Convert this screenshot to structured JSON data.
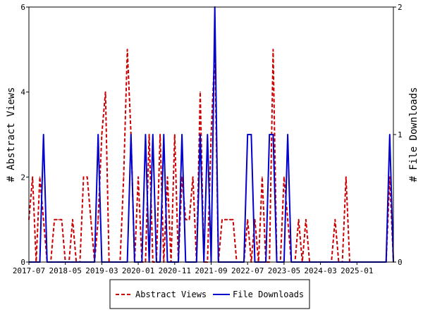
{
  "chart_data": {
    "type": "line",
    "x_tick_labels": [
      "2017-07",
      "2018-05",
      "2019-03",
      "2020-01",
      "2020-11",
      "2021-09",
      "2022-07",
      "2023-05",
      "2024-03",
      "2025-01"
    ],
    "x_start": "2017-07",
    "x_end": "2025-11",
    "ylabel_left": "# Abstract Views",
    "ylabel_right": "# File Downloads",
    "ylim_left": [
      0,
      6
    ],
    "ylim_right": [
      0,
      2
    ],
    "yticks_left": [
      "0",
      "2",
      "4",
      "6"
    ],
    "yticks_right": [
      "0",
      "1",
      "2"
    ],
    "legend_position": "bottom-center",
    "series": [
      {
        "name": "Abstract Views",
        "axis": "left",
        "color": "#cc0000",
        "dash": "dashed",
        "points": [
          [
            "2017-07",
            1
          ],
          [
            "2017-08",
            2
          ],
          [
            "2017-09",
            0
          ],
          [
            "2017-10",
            2
          ],
          [
            "2017-11",
            1
          ],
          [
            "2017-12",
            0
          ],
          [
            "2018-01",
            0
          ],
          [
            "2018-02",
            1
          ],
          [
            "2018-03",
            1
          ],
          [
            "2018-04",
            1
          ],
          [
            "2018-05",
            0
          ],
          [
            "2018-06",
            0
          ],
          [
            "2018-07",
            1
          ],
          [
            "2018-08",
            0
          ],
          [
            "2018-09",
            0
          ],
          [
            "2018-10",
            2
          ],
          [
            "2018-11",
            2
          ],
          [
            "2018-12",
            1
          ],
          [
            "2019-01",
            0
          ],
          [
            "2019-02",
            1
          ],
          [
            "2019-03",
            3
          ],
          [
            "2019-04",
            4
          ],
          [
            "2019-05",
            0
          ],
          [
            "2019-06",
            0
          ],
          [
            "2019-07",
            0
          ],
          [
            "2019-08",
            0
          ],
          [
            "2019-09",
            2
          ],
          [
            "2019-10",
            5
          ],
          [
            "2019-11",
            3
          ],
          [
            "2019-12",
            0
          ],
          [
            "2020-01",
            2
          ],
          [
            "2020-02",
            0
          ],
          [
            "2020-03",
            0
          ],
          [
            "2020-04",
            3
          ],
          [
            "2020-05",
            0
          ],
          [
            "2020-06",
            0
          ],
          [
            "2020-07",
            3
          ],
          [
            "2020-08",
            0
          ],
          [
            "2020-09",
            2
          ],
          [
            "2020-10",
            0
          ],
          [
            "2020-11",
            3
          ],
          [
            "2020-12",
            0
          ],
          [
            "2021-01",
            2
          ],
          [
            "2021-02",
            1
          ],
          [
            "2021-03",
            1
          ],
          [
            "2021-04",
            2
          ],
          [
            "2021-05",
            0
          ],
          [
            "2021-06",
            4
          ],
          [
            "2021-07",
            0
          ],
          [
            "2021-08",
            0
          ],
          [
            "2021-09",
            3
          ],
          [
            "2021-10",
            5
          ],
          [
            "2021-11",
            0
          ],
          [
            "2021-12",
            1
          ],
          [
            "2022-01",
            1
          ],
          [
            "2022-02",
            1
          ],
          [
            "2022-03",
            1
          ],
          [
            "2022-04",
            0
          ],
          [
            "2022-05",
            0
          ],
          [
            "2022-06",
            0
          ],
          [
            "2022-07",
            1
          ],
          [
            "2022-08",
            0
          ],
          [
            "2022-09",
            1
          ],
          [
            "2022-10",
            0
          ],
          [
            "2022-11",
            2
          ],
          [
            "2022-12",
            0
          ],
          [
            "2023-01",
            0
          ],
          [
            "2023-02",
            5
          ],
          [
            "2023-03",
            0
          ],
          [
            "2023-04",
            0
          ],
          [
            "2023-05",
            2
          ],
          [
            "2023-06",
            1
          ],
          [
            "2023-07",
            0
          ],
          [
            "2023-08",
            0
          ],
          [
            "2023-09",
            1
          ],
          [
            "2023-10",
            0
          ],
          [
            "2023-11",
            1
          ],
          [
            "2023-12",
            0
          ],
          [
            "2024-01",
            0
          ],
          [
            "2024-02",
            0
          ],
          [
            "2024-03",
            0
          ],
          [
            "2024-04",
            0
          ],
          [
            "2024-05",
            0
          ],
          [
            "2024-06",
            0
          ],
          [
            "2024-07",
            1
          ],
          [
            "2024-08",
            0
          ],
          [
            "2024-09",
            0
          ],
          [
            "2024-10",
            2
          ],
          [
            "2024-11",
            0
          ],
          [
            "2024-12",
            0
          ],
          [
            "2025-01",
            0
          ],
          [
            "2025-02",
            0
          ],
          [
            "2025-03",
            0
          ],
          [
            "2025-04",
            0
          ],
          [
            "2025-05",
            0
          ],
          [
            "2025-06",
            0
          ],
          [
            "2025-07",
            0
          ],
          [
            "2025-08",
            0
          ],
          [
            "2025-09",
            0
          ],
          [
            "2025-10",
            2
          ],
          [
            "2025-11",
            0
          ]
        ]
      },
      {
        "name": "File Downloads",
        "axis": "right",
        "color": "#0000cc",
        "dash": "solid",
        "points": [
          [
            "2017-07",
            0
          ],
          [
            "2017-08",
            0
          ],
          [
            "2017-09",
            0
          ],
          [
            "2017-10",
            0
          ],
          [
            "2017-11",
            1
          ],
          [
            "2017-12",
            0
          ],
          [
            "2018-01",
            0
          ],
          [
            "2018-02",
            0
          ],
          [
            "2018-03",
            0
          ],
          [
            "2018-04",
            0
          ],
          [
            "2018-05",
            0
          ],
          [
            "2018-06",
            0
          ],
          [
            "2018-07",
            0
          ],
          [
            "2018-08",
            0
          ],
          [
            "2018-09",
            0
          ],
          [
            "2018-10",
            0
          ],
          [
            "2018-11",
            0
          ],
          [
            "2018-12",
            0
          ],
          [
            "2019-01",
            0
          ],
          [
            "2019-02",
            1
          ],
          [
            "2019-03",
            0
          ],
          [
            "2019-04",
            0
          ],
          [
            "2019-05",
            0
          ],
          [
            "2019-06",
            0
          ],
          [
            "2019-07",
            0
          ],
          [
            "2019-08",
            0
          ],
          [
            "2019-09",
            0
          ],
          [
            "2019-10",
            0
          ],
          [
            "2019-11",
            1
          ],
          [
            "2019-12",
            0
          ],
          [
            "2020-01",
            0
          ],
          [
            "2020-02",
            0
          ],
          [
            "2020-03",
            1
          ],
          [
            "2020-04",
            0
          ],
          [
            "2020-05",
            1
          ],
          [
            "2020-06",
            0
          ],
          [
            "2020-07",
            0
          ],
          [
            "2020-08",
            1
          ],
          [
            "2020-09",
            0
          ],
          [
            "2020-10",
            0
          ],
          [
            "2020-11",
            0
          ],
          [
            "2020-12",
            0
          ],
          [
            "2021-01",
            1
          ],
          [
            "2021-02",
            0
          ],
          [
            "2021-03",
            0
          ],
          [
            "2021-04",
            0
          ],
          [
            "2021-05",
            0
          ],
          [
            "2021-06",
            1
          ],
          [
            "2021-07",
            0
          ],
          [
            "2021-08",
            1
          ],
          [
            "2021-09",
            0
          ],
          [
            "2021-10",
            2
          ],
          [
            "2021-11",
            0
          ],
          [
            "2021-12",
            0
          ],
          [
            "2022-01",
            0
          ],
          [
            "2022-02",
            0
          ],
          [
            "2022-03",
            0
          ],
          [
            "2022-04",
            0
          ],
          [
            "2022-05",
            0
          ],
          [
            "2022-06",
            0
          ],
          [
            "2022-07",
            1
          ],
          [
            "2022-08",
            1
          ],
          [
            "2022-09",
            0
          ],
          [
            "2022-10",
            0
          ],
          [
            "2022-11",
            0
          ],
          [
            "2022-12",
            0
          ],
          [
            "2023-01",
            1
          ],
          [
            "2023-02",
            1
          ],
          [
            "2023-03",
            0
          ],
          [
            "2023-04",
            0
          ],
          [
            "2023-05",
            0
          ],
          [
            "2023-06",
            1
          ],
          [
            "2023-07",
            0
          ],
          [
            "2023-08",
            0
          ],
          [
            "2023-09",
            0
          ],
          [
            "2023-10",
            0
          ],
          [
            "2023-11",
            0
          ],
          [
            "2023-12",
            0
          ],
          [
            "2024-01",
            0
          ],
          [
            "2024-02",
            0
          ],
          [
            "2024-03",
            0
          ],
          [
            "2024-04",
            0
          ],
          [
            "2024-05",
            0
          ],
          [
            "2024-06",
            0
          ],
          [
            "2024-07",
            0
          ],
          [
            "2024-08",
            0
          ],
          [
            "2024-09",
            0
          ],
          [
            "2024-10",
            0
          ],
          [
            "2024-11",
            0
          ],
          [
            "2024-12",
            0
          ],
          [
            "2025-01",
            0
          ],
          [
            "2025-02",
            0
          ],
          [
            "2025-03",
            0
          ],
          [
            "2025-04",
            0
          ],
          [
            "2025-05",
            0
          ],
          [
            "2025-06",
            0
          ],
          [
            "2025-07",
            0
          ],
          [
            "2025-08",
            0
          ],
          [
            "2025-09",
            0
          ],
          [
            "2025-10",
            1
          ],
          [
            "2025-11",
            0
          ]
        ]
      }
    ]
  }
}
